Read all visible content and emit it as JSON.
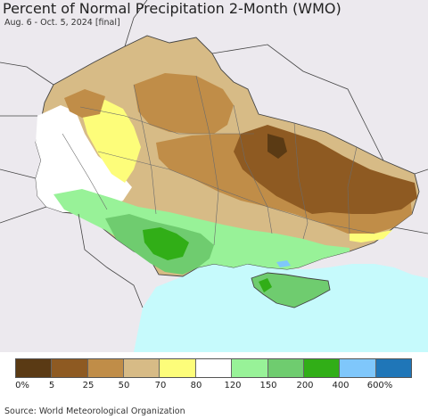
{
  "title": "Percent of Normal Precipitation 2-Month (WMO)",
  "subtitle": "Aug. 6 - Oct. 5, 2024 [final]",
  "source": "Source: World Meteorological Organization",
  "colors": {
    "background": "#ece9ee",
    "sea": "#c6fafc",
    "border": "#444444"
  },
  "legend": {
    "swatches": [
      {
        "color": "#5a3a14"
      },
      {
        "color": "#8e5a22"
      },
      {
        "color": "#c08d48"
      },
      {
        "color": "#d7bb86"
      },
      {
        "color": "#fdfd7a"
      },
      {
        "color": "#ffffff"
      },
      {
        "color": "#98f298"
      },
      {
        "color": "#6fcc6f"
      },
      {
        "color": "#31ae17"
      },
      {
        "color": "#7fc7fb"
      },
      {
        "color": "#1f76b8"
      }
    ],
    "ticks": [
      "0%",
      "5",
      "25",
      "50",
      "70",
      "80",
      "120",
      "150",
      "200",
      "400",
      "600%"
    ]
  }
}
